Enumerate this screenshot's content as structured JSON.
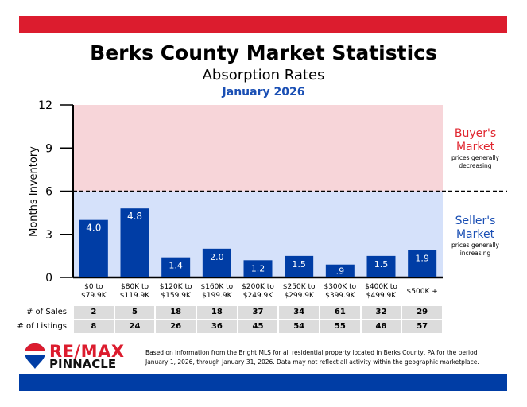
{
  "header": {
    "title": "Berks County Market Statistics",
    "subtitle": "Absorption Rates",
    "date": "January 2026"
  },
  "chart_data": {
    "type": "bar",
    "ylabel": "Months Inventory",
    "ylim": [
      0,
      12
    ],
    "yticks": [
      "0",
      "3",
      "6",
      "9",
      "12"
    ],
    "threshold": 6,
    "categories": [
      [
        "$0 to",
        "$79.9K"
      ],
      [
        "$80K to",
        "$119.9K"
      ],
      [
        "$120K to",
        "$159.9K"
      ],
      [
        "$160K to",
        "$199.9K"
      ],
      [
        "$200K to",
        "$249.9K"
      ],
      [
        "$250K to",
        "$299.9K"
      ],
      [
        "$300K to",
        "$399.9K"
      ],
      [
        "$400K to",
        "$499.9K"
      ],
      [
        "$500K +",
        ""
      ]
    ],
    "values": [
      4.0,
      4.8,
      1.4,
      2.0,
      1.2,
      1.5,
      0.9,
      1.5,
      1.9
    ],
    "labels": [
      "4.0",
      "4.8",
      "1.4",
      "2.0",
      "1.2",
      "1.5",
      ".9",
      "1.5",
      "1.9"
    ],
    "regions": {
      "buyer": {
        "title": [
          "Buyer's",
          "Market"
        ],
        "note": [
          "prices generally",
          "decreasing"
        ],
        "color": "#e0262f"
      },
      "seller": {
        "title": [
          "Seller's",
          "Market"
        ],
        "note": [
          "prices generally",
          "increasing"
        ],
        "color": "#1a4fb4"
      }
    },
    "colors": {
      "bar": "#003da5",
      "buyer_bg": "#f7d5d9",
      "seller_bg": "#d5e1fa"
    }
  },
  "table": {
    "sales_label": "# of Sales",
    "listings_label": "# of Listings",
    "sales": [
      "2",
      "5",
      "18",
      "18",
      "37",
      "34",
      "61",
      "32",
      "29"
    ],
    "listings": [
      "8",
      "24",
      "26",
      "36",
      "45",
      "54",
      "55",
      "48",
      "57"
    ]
  },
  "footer": {
    "logo": [
      "RE/MAX",
      "PINNACLE"
    ],
    "disclaimer": [
      "Based on information from the Bright MLS for all residential property located in Berks County, PA for the period",
      "January 1, 2026, through January 31, 2026.  Data may not reflect all activity within the geographic marketplace."
    ]
  }
}
